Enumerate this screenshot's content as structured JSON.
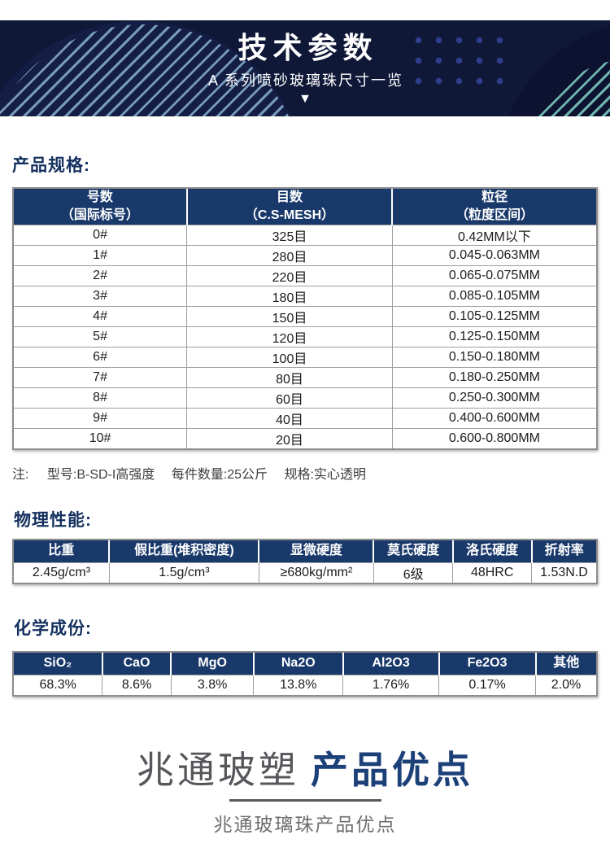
{
  "banner": {
    "title": "技术参数",
    "subtitle": "A 系列喷砂玻璃珠尺寸一览",
    "arrow": "▼"
  },
  "sections": {
    "spec": {
      "heading": "产品规格:",
      "table": {
        "headers": [
          "号数\n（国际标号）",
          "目数\n（C.S-MESH）",
          "粒径\n（粒度区间）"
        ],
        "rows": [
          [
            "0#",
            "325目",
            "0.42MM以下"
          ],
          [
            "1#",
            "280目",
            "0.045-0.063MM"
          ],
          [
            "2#",
            "220目",
            "0.065-0.075MM"
          ],
          [
            "3#",
            "180目",
            "0.085-0.105MM"
          ],
          [
            "4#",
            "150目",
            "0.105-0.125MM"
          ],
          [
            "5#",
            "120目",
            "0.125-0.150MM"
          ],
          [
            "6#",
            "100目",
            "0.150-0.180MM"
          ],
          [
            "7#",
            "80目",
            "0.180-0.250MM"
          ],
          [
            "8#",
            "60目",
            "0.250-0.300MM"
          ],
          [
            "9#",
            "40目",
            "0.400-0.600MM"
          ],
          [
            "10#",
            "20目",
            "0.600-0.800MM"
          ]
        ]
      },
      "note": {
        "label": "注:",
        "items": [
          "型号:B-SD-I高强度",
          "每件数量:25公斤",
          "规格:实心透明"
        ]
      }
    },
    "physical": {
      "heading": "物理性能:",
      "table": {
        "headers": [
          "比重",
          "假比重(堆积密度)",
          "显微硬度",
          "莫氏硬度",
          "洛氏硬度",
          "折射率"
        ],
        "rows": [
          [
            "2.45g/cm³",
            "1.5g/cm³",
            "≥680kg/mm²",
            "6级",
            "48HRC",
            "1.53N.D"
          ]
        ]
      }
    },
    "chemical": {
      "heading": "化学成份:",
      "table": {
        "headers": [
          "SiO₂",
          "CaO",
          "MgO",
          "Na2O",
          "Al2O3",
          "Fe2O3",
          "其他"
        ],
        "rows": [
          [
            "68.3%",
            "8.6%",
            "3.8%",
            "13.8%",
            "1.76%",
            "0.17%",
            "2.0%"
          ]
        ]
      }
    }
  },
  "footer": {
    "brand": "兆通玻塑",
    "title": "产品优点",
    "subtitle": "兆通玻璃珠产品优点"
  },
  "colors": {
    "banner_bg": "#101838",
    "table_header_navy": "#1a396b",
    "section_heading_navy": "#14305e",
    "footer_navy": "#1c4078",
    "stripe_left": "#82a6c6",
    "stripe_right": "#7fd0c4",
    "dots_blue": "#2e3e8c",
    "border_gray": "#9e9e9e"
  }
}
